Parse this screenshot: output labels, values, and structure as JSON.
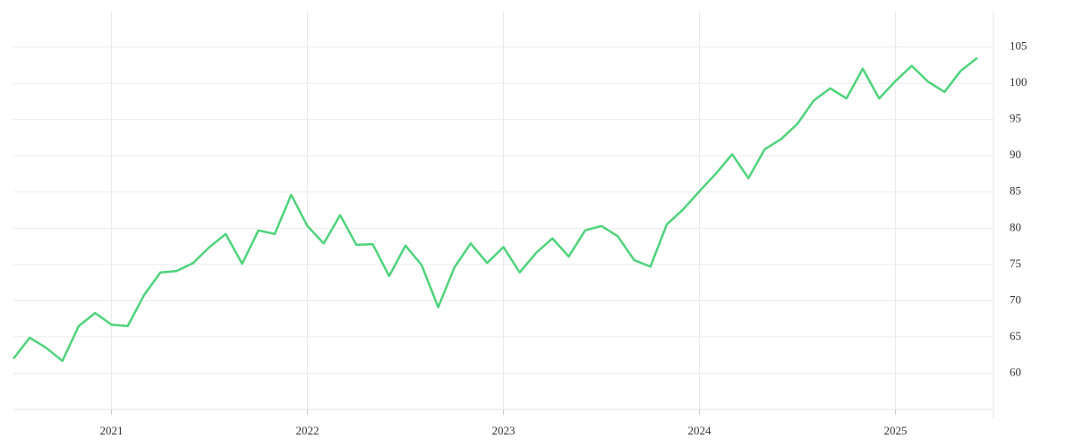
{
  "chart_data": {
    "type": "line",
    "color": "#4fd37b",
    "grid": true,
    "y_axis_side": "right",
    "x": [
      2020.5,
      2020.583,
      2020.667,
      2020.75,
      2020.833,
      2020.917,
      2021,
      2021.083,
      2021.167,
      2021.25,
      2021.333,
      2021.417,
      2021.5,
      2021.583,
      2021.667,
      2021.75,
      2021.833,
      2021.917,
      2022,
      2022.083,
      2022.167,
      2022.25,
      2022.333,
      2022.417,
      2022.5,
      2022.583,
      2022.667,
      2022.75,
      2022.833,
      2022.917,
      2023,
      2023.083,
      2023.167,
      2023.25,
      2023.333,
      2023.417,
      2023.5,
      2023.583,
      2023.667,
      2023.75,
      2023.833,
      2023.917,
      2024,
      2024.083,
      2024.167,
      2024.25,
      2024.333,
      2024.417,
      2024.5,
      2024.583,
      2024.667,
      2024.75,
      2024.833,
      2024.917,
      2025,
      2025.083,
      2025.167,
      2025.25,
      2025.333,
      2025.417
    ],
    "values": [
      62.0,
      64.9,
      63.5,
      61.7,
      66.5,
      68.3,
      66.7,
      66.5,
      70.8,
      73.9,
      74.1,
      75.2,
      77.4,
      79.2,
      75.1,
      79.7,
      79.2,
      84.6,
      80.3,
      77.9,
      81.8,
      77.7,
      77.8,
      73.4,
      77.6,
      74.9,
      69.1,
      74.6,
      77.9,
      75.2,
      77.4,
      73.9,
      76.6,
      78.6,
      76.1,
      79.7,
      80.3,
      78.9,
      75.6,
      74.7,
      80.5,
      82.6,
      85.1,
      87.5,
      90.2,
      86.9,
      90.9,
      92.3,
      94.4,
      97.6,
      99.3,
      97.9,
      102.0,
      97.9,
      100.3,
      102.4,
      100.2,
      98.8,
      101.7,
      103.5
    ],
    "xlim": [
      2020.5,
      2025.5
    ],
    "xticks": [
      2021,
      2022,
      2023,
      2024,
      2025
    ],
    "ylim": [
      55,
      110
    ],
    "yticks": [
      60,
      65,
      70,
      75,
      80,
      85,
      90,
      95,
      100,
      105
    ]
  }
}
